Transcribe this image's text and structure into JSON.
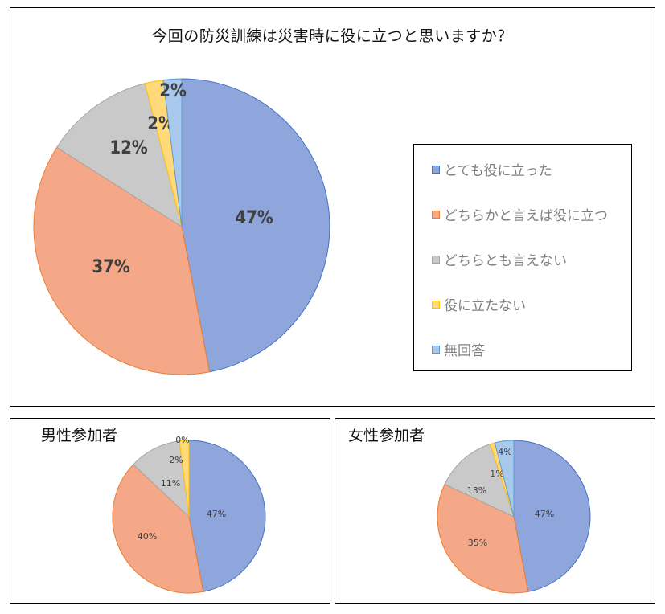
{
  "main": {
    "title": "今回の防災訓練は災害時に役に立つと思いますか？",
    "legend": [
      {
        "label": "とても役に立った",
        "color": "#8fa6dc",
        "border": "#4472c4"
      },
      {
        "label": "どちらかと言えば役に立つ",
        "color": "#f4a887",
        "border": "#ed7d31"
      },
      {
        "label": "どちらとも言えない",
        "color": "#c9c9c9",
        "border": "#a5a5a5"
      },
      {
        "label": "役に立たない",
        "color": "#ffd97a",
        "border": "#ffc000"
      },
      {
        "label": "無回答",
        "color": "#a8c8ec",
        "border": "#5b9bd5"
      }
    ],
    "labels": [
      "47%",
      "37%",
      "12%",
      "2%",
      "2%"
    ]
  },
  "male": {
    "title": "男性参加者",
    "labels": [
      "47%",
      "40%",
      "11%",
      "2%",
      "0%"
    ]
  },
  "female": {
    "title": "女性参加者",
    "labels": [
      "47%",
      "35%",
      "13%",
      "1%",
      "4%"
    ]
  },
  "chart_data": [
    {
      "type": "pie",
      "title": "今回の防災訓練は災害時に役に立つと思いますか？",
      "categories": [
        "とても役に立った",
        "どちらかと言えば役に立つ",
        "どちらとも言えない",
        "役に立たない",
        "無回答"
      ],
      "values": [
        47,
        37,
        12,
        2,
        2
      ],
      "legend_position": "right"
    },
    {
      "type": "pie",
      "title": "男性参加者",
      "categories": [
        "とても役に立った",
        "どちらかと言えば役に立つ",
        "どちらとも言えない",
        "役に立たない",
        "無回答"
      ],
      "values": [
        47,
        40,
        11,
        2,
        0
      ]
    },
    {
      "type": "pie",
      "title": "女性参加者",
      "categories": [
        "とても役に立った",
        "どちらかと言えば役に立つ",
        "どちらとも言えない",
        "役に立たない",
        "無回答"
      ],
      "values": [
        47,
        35,
        13,
        1,
        4
      ]
    }
  ]
}
